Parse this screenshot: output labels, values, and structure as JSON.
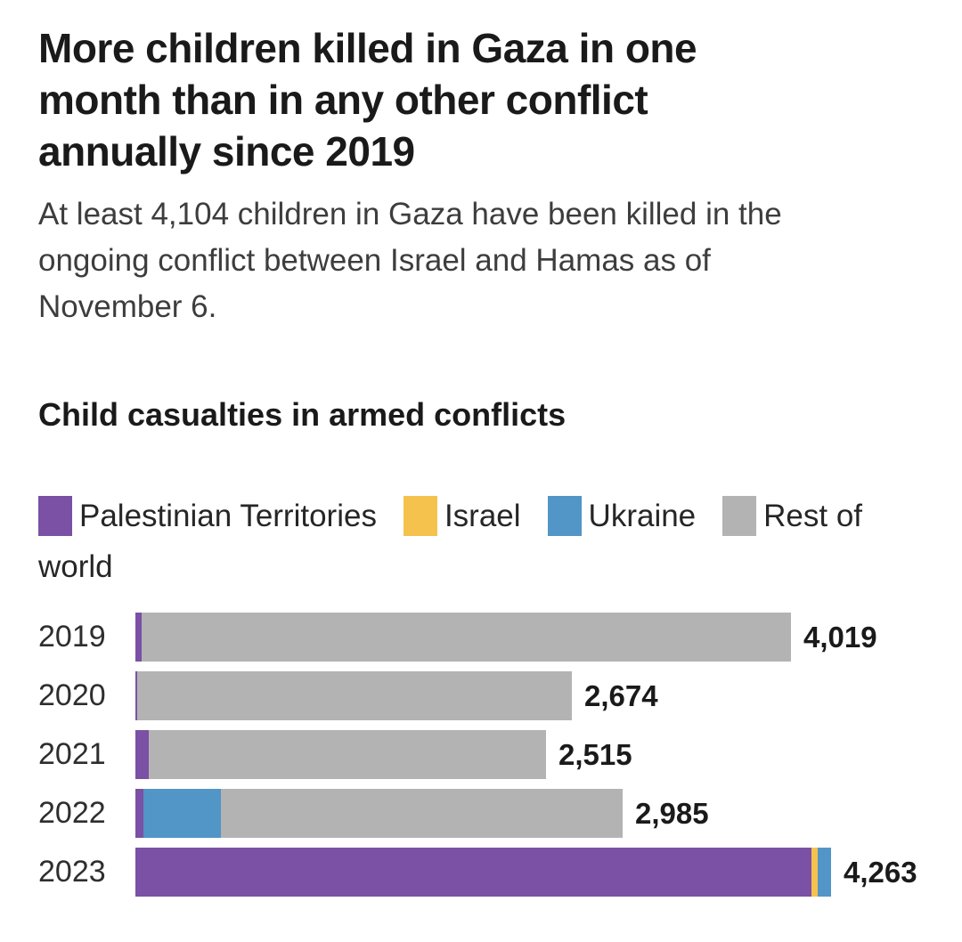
{
  "header": {
    "title": "More children killed in Gaza in one month than in any other conflict annually since 2019",
    "title_lines": [
      "More children killed in Gaza in one",
      "month than in any other conflict",
      "annually since 2019"
    ],
    "subtitle": "At least 4,104 children in Gaza have been killed in the ongoing conflict between Israel and Hamas as of November 6.",
    "subtitle_lines": [
      "At least 4,104 children in Gaza have been killed in the",
      "ongoing conflict between Israel and Hamas as of",
      "November 6."
    ]
  },
  "chart_data": {
    "type": "bar",
    "orientation": "horizontal",
    "stacked": true,
    "title": "Child casualties in armed conflicts",
    "legend_position": "top",
    "grid": false,
    "categories": [
      "2019",
      "2020",
      "2021",
      "2022",
      "2023"
    ],
    "totals": [
      4019,
      2674,
      2515,
      2985,
      4263
    ],
    "total_labels": [
      "4,019",
      "2,674",
      "2,515",
      "2,985",
      "4,263"
    ],
    "x_max": 4263,
    "legend": [
      {
        "name": "Palestinian Territories",
        "color": "#7A51A5"
      },
      {
        "name": "Israel",
        "color": "#F5C24D"
      },
      {
        "name": "Ukraine",
        "color": "#5295C7"
      },
      {
        "name": "Rest of world",
        "color": "#B3B3B3",
        "display_first_line": "Rest of",
        "display_second_line": "world"
      }
    ],
    "rows": [
      {
        "year": "2019",
        "total": 4019,
        "label": "4,019",
        "segments": [
          {
            "series": "Palestinian Territories",
            "value": 38
          },
          {
            "series": "Rest of world",
            "value": 3981
          }
        ]
      },
      {
        "year": "2020",
        "total": 2674,
        "label": "2,674",
        "segments": [
          {
            "series": "Palestinian Territories",
            "value": 11
          },
          {
            "series": "Rest of world",
            "value": 2663
          }
        ]
      },
      {
        "year": "2021",
        "total": 2515,
        "label": "2,515",
        "segments": [
          {
            "series": "Palestinian Territories",
            "value": 82
          },
          {
            "series": "Rest of world",
            "value": 2433
          }
        ]
      },
      {
        "year": "2022",
        "total": 2985,
        "label": "2,985",
        "segments": [
          {
            "series": "Palestinian Territories",
            "value": 49
          },
          {
            "series": "Ukraine",
            "value": 477
          },
          {
            "series": "Rest of world",
            "value": 2459
          }
        ]
      },
      {
        "year": "2023",
        "total": 4263,
        "label": "4,263",
        "segments": [
          {
            "series": "Palestinian Territories",
            "value": 4141
          },
          {
            "series": "Israel",
            "value": 40
          },
          {
            "series": "Ukraine",
            "value": 82
          }
        ]
      }
    ]
  },
  "colors": {
    "palestinian_territories": "#7A51A5",
    "israel": "#F5C24D",
    "ukraine": "#5295C7",
    "rest_of_world": "#B3B3B3",
    "headline_text": "#1a1a1a",
    "subtitle_text": "#3d3d3d",
    "year_label_text": "#2e2e2e",
    "value_label_text": "#1a1a1a",
    "background": "#ffffff"
  }
}
